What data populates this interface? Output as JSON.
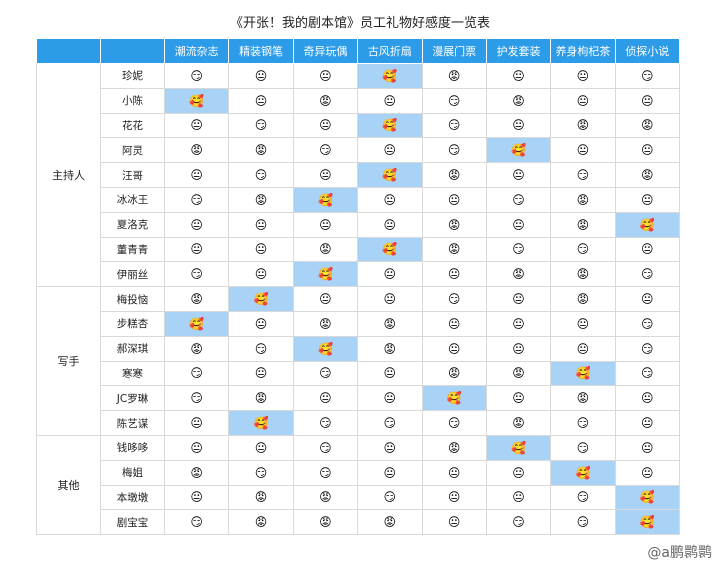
{
  "title": "《开张！我的剧本馆》员工礼物好感度一览表",
  "header": {
    "columns": [
      "潮流杂志",
      "精装钢笔",
      "奇异玩偶",
      "古风折扇",
      "漫展门票",
      "护发套装",
      "养身枸杞茶",
      "侦探小说"
    ]
  },
  "highlight": {
    "emoji": "🥰",
    "color": "#a8d3f6"
  },
  "groups": [
    {
      "label": "主持人",
      "rows": [
        {
          "name": "珍妮",
          "cells": [
            "😏",
            "😐",
            "😐",
            "🥰",
            "😡",
            "😐",
            "😐",
            "😏"
          ]
        },
        {
          "name": "小陈",
          "cells": [
            "🥰",
            "😐",
            "😡",
            "😐",
            "😏",
            "😡",
            "😐",
            "😐"
          ]
        },
        {
          "name": "花花",
          "cells": [
            "😐",
            "😏",
            "😐",
            "🥰",
            "😏",
            "😐",
            "😡",
            "😡"
          ]
        },
        {
          "name": "阿灵",
          "cells": [
            "😡",
            "😡",
            "😏",
            "😐",
            "😏",
            "🥰",
            "😐",
            "😐"
          ]
        },
        {
          "name": "汪哥",
          "cells": [
            "😐",
            "😏",
            "😐",
            "🥰",
            "😡",
            "😐",
            "😏",
            "😡"
          ]
        },
        {
          "name": "冰冰王",
          "cells": [
            "😏",
            "😡",
            "🥰",
            "😐",
            "😐",
            "😏",
            "😡",
            "😐"
          ]
        },
        {
          "name": "夏洛克",
          "cells": [
            "😐",
            "😐",
            "😐",
            "😐",
            "😡",
            "😐",
            "😡",
            "🥰"
          ]
        },
        {
          "name": "董青青",
          "cells": [
            "😐",
            "😐",
            "😡",
            "🥰",
            "😡",
            "😏",
            "😏",
            "😐"
          ]
        },
        {
          "name": "伊丽丝",
          "cells": [
            "😏",
            "😐",
            "🥰",
            "😐",
            "😐",
            "😡",
            "😡",
            "😏"
          ]
        }
      ]
    },
    {
      "label": "写手",
      "rows": [
        {
          "name": "梅投恼",
          "cells": [
            "😡",
            "🥰",
            "😐",
            "😐",
            "😏",
            "😐",
            "😡",
            "😐"
          ]
        },
        {
          "name": "步糕杏",
          "cells": [
            "🥰",
            "😐",
            "😡",
            "😡",
            "😐",
            "😐",
            "😐",
            "😏"
          ]
        },
        {
          "name": "郝深琪",
          "cells": [
            "😡",
            "😏",
            "🥰",
            "😡",
            "😐",
            "😐",
            "😐",
            "😏"
          ]
        },
        {
          "name": "寒寒",
          "cells": [
            "😏",
            "😐",
            "😏",
            "😐",
            "😡",
            "😡",
            "🥰",
            "😏"
          ]
        },
        {
          "name": "JC罗琳",
          "cells": [
            "😏",
            "😡",
            "😐",
            "😐",
            "🥰",
            "😐",
            "😡",
            "😐"
          ]
        },
        {
          "name": "陈艺谋",
          "cells": [
            "😐",
            "🥰",
            "😏",
            "😏",
            "😏",
            "😡",
            "😏",
            "😐"
          ]
        }
      ]
    },
    {
      "label": "其他",
      "rows": [
        {
          "name": "钱哆哆",
          "cells": [
            "😐",
            "😐",
            "😏",
            "😐",
            "😡",
            "🥰",
            "😏",
            "😐"
          ]
        },
        {
          "name": "梅姐",
          "cells": [
            "😡",
            "😏",
            "😏",
            "😐",
            "😐",
            "😐",
            "🥰",
            "😐"
          ]
        },
        {
          "name": "本墩墩",
          "cells": [
            "😐",
            "😡",
            "😡",
            "😏",
            "😐",
            "😐",
            "😏",
            "🥰"
          ]
        },
        {
          "name": "剧宝宝",
          "cells": [
            "😏",
            "😡",
            "😡",
            "😡",
            "😐",
            "😏",
            "😏",
            "🥰"
          ]
        }
      ]
    }
  ],
  "watermark": "@a鹏鹮鹮"
}
